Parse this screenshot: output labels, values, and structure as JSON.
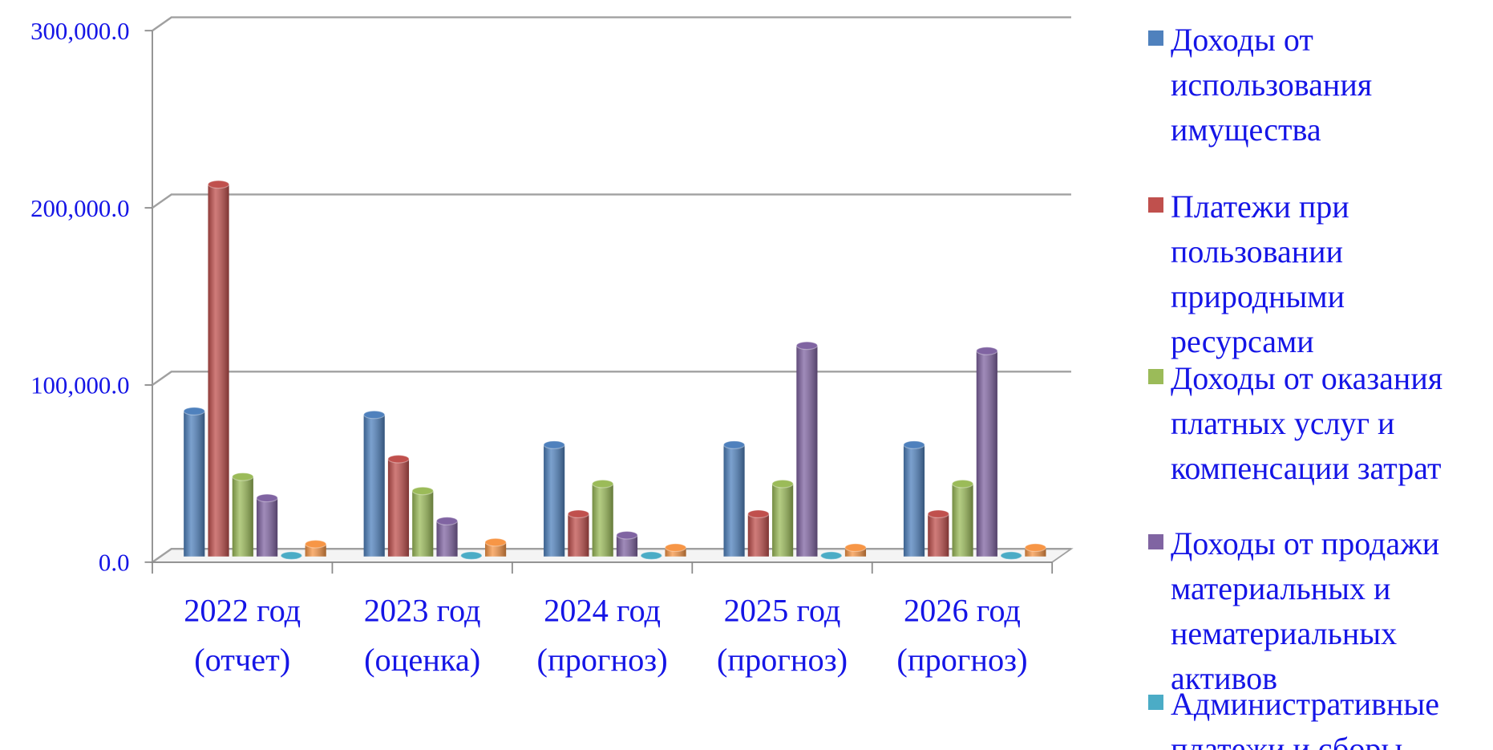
{
  "chart_data": {
    "type": "bar",
    "categories": [
      [
        "2022 год",
        "(отчет)"
      ],
      [
        "2023 год",
        "(оценка)"
      ],
      [
        "2024 год",
        "(прогноз)"
      ],
      [
        "2025 год",
        "(прогноз)"
      ],
      [
        "2026 год",
        "(прогноз)"
      ]
    ],
    "series": [
      {
        "name": "Доходы от использования имущества",
        "color": "#4f81bd",
        "values": [
          82000,
          80000,
          63000,
          63000,
          63000
        ]
      },
      {
        "name": "Платежи при пользовании природными ресурсами",
        "color": "#c0504d",
        "values": [
          210000,
          55000,
          24000,
          24000,
          24000
        ]
      },
      {
        "name": "Доходы от оказания платных услуг и компенсации затрат",
        "color": "#9bbb59",
        "values": [
          45000,
          37000,
          41000,
          41000,
          41000
        ]
      },
      {
        "name": "Доходы от продажи материальных и нематериальных активов",
        "color": "#8064a2",
        "values": [
          33000,
          20000,
          12000,
          119000,
          116000
        ]
      },
      {
        "name": "Административные платежи и сборы",
        "color": "#4bacc6",
        "values": [
          500,
          500,
          500,
          500,
          500
        ]
      },
      {
        "color": "#f79646",
        "values": [
          7000,
          8000,
          5000,
          5000,
          5000
        ]
      }
    ],
    "ylim": [
      0,
      300000
    ],
    "yticks": [
      {
        "value": 0,
        "label": "0.0"
      },
      {
        "value": 100000,
        "label": "100,000.0"
      },
      {
        "value": 200000,
        "label": "200,000.0"
      },
      {
        "value": 300000,
        "label": "300,000.0"
      }
    ],
    "grid": true,
    "legend": "right"
  }
}
